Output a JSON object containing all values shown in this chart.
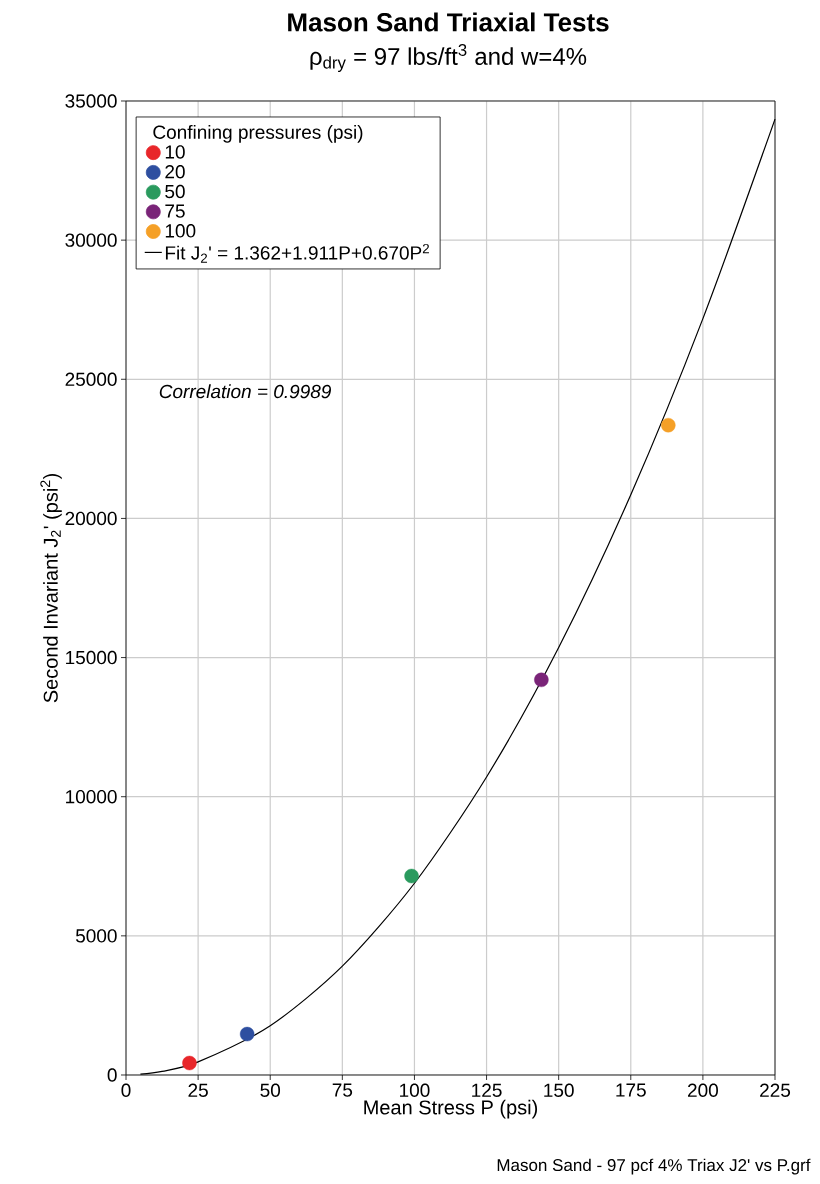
{
  "chart_data": {
    "type": "scatter",
    "title": "Mason Sand Triaxial Tests",
    "subtitle": "ρ$_{dry}$ = 97 lbs/ft$^{3}$ and w=4%",
    "xlabel": "Mean Stress P (psi)",
    "ylabel": "Second Invariant J$_{2}$' (psi$^{2}$)",
    "legend_title": "Confining pressures (psi)",
    "annotations": [
      "Correlation = 0.9989",
      "Mason Sand - 97 pcf 4% Triax J2' vs P.grf"
    ],
    "series": [
      {
        "name": "10",
        "color": "#e8262a",
        "marker": "circle",
        "x": [
          22
        ],
        "values": [
          430
        ]
      },
      {
        "name": "20",
        "color": "#2e4fa0",
        "marker": "circle",
        "x": [
          42
        ],
        "values": [
          1470
        ]
      },
      {
        "name": "50",
        "color": "#2a9a5e",
        "marker": "circle",
        "x": [
          99
        ],
        "values": [
          7150
        ]
      },
      {
        "name": "75",
        "color": "#7a2478",
        "marker": "circle",
        "x": [
          144
        ],
        "values": [
          14200
        ]
      },
      {
        "name": "100",
        "color": "#f5a027",
        "marker": "circle",
        "x": [
          188
        ],
        "values": [
          23350
        ]
      },
      {
        "name": "Fit J$_{2}$' = 1.362+1.911P+0.670P$^{2}$",
        "type": "line",
        "color": "#000000",
        "marker": "none",
        "x": [
          5,
          12.5,
          25,
          50,
          75,
          100,
          125,
          150,
          175,
          200,
          225
        ],
        "values": [
          30,
          130,
          470,
          1770,
          3910,
          6890,
          10710,
          15360,
          20850,
          27180,
          34350
        ]
      }
    ],
    "xlim": [
      0,
      225
    ],
    "xticks": [
      0,
      25,
      50,
      75,
      100,
      125,
      150,
      175,
      200,
      225
    ],
    "ylim": [
      0,
      35000
    ],
    "yticks": [
      0,
      5000,
      10000,
      15000,
      20000,
      25000,
      30000,
      35000
    ],
    "grid": true,
    "legend": "top left"
  }
}
